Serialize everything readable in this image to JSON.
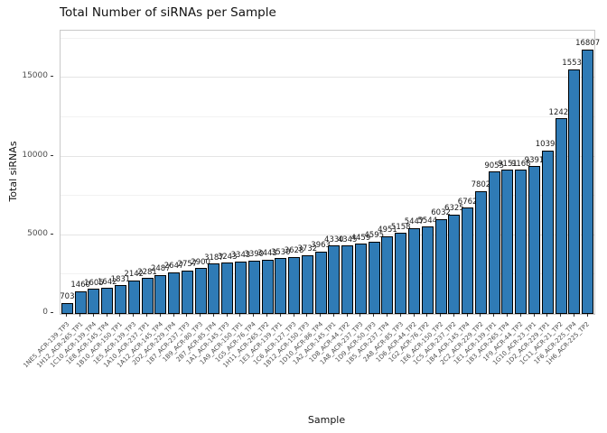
{
  "chart_data": {
    "type": "bar",
    "title": "Total Number of siRNAs per Sample",
    "xlabel": "Sample",
    "ylabel": "Total siRNAs",
    "ylim": [
      0,
      18000
    ],
    "yticks": [
      0,
      5000,
      10000,
      15000
    ],
    "yticks_minor": [
      2500,
      7500,
      12500,
      17500
    ],
    "grid": "on",
    "legend": "none",
    "bar_color": "#2f7bb6",
    "bar_border": "#000000",
    "categories": [
      "1NE5_ACR-139_TP3",
      "1H12_ACR-265_TP1",
      "1C10_ACR-139_TP4",
      "1E8_ACR-145_TP4",
      "1B10_ACR-150_TP1",
      "1E5_ACR-139_TP3",
      "1A10_ACR-237_TP1",
      "1A12_ACR-145_TP4",
      "2D2_ACR-229_TP4",
      "1B7_ACR-237_TP3",
      "1B9_ACR-80_TP3",
      "2B7_ACR-85_TP4",
      "1A1_ACR-145_TP3",
      "1A9_ACR-150_TP1",
      "1G5_ACR-76_TP4",
      "1H11_ACR-265_TP2",
      "1E3_ACR-139_TP1",
      "1C6_ACR-127_TP3",
      "1B12_ACR-150_TP3",
      "1D10_ACR-86_TP4",
      "1A2_ACR-145_TP1",
      "1D8_ACR-44_TP2",
      "1A8_ACR-237_TP3",
      "1D9_ACR-50_TP3",
      "1B5_ACR-237_TP4",
      "2A8_ACR-85_TP3",
      "1D6_ACR-44_TP2",
      "1G2_ACR-76_TP2",
      "1E6_ACR-150_TP2",
      "1C5_ACR-237_TP2",
      "1B4_ACR-145_TP4",
      "2C2_ACR-229_TP2",
      "1E1_ACR-139_TP1",
      "1B3_ACR-265_TP4",
      "1F9_ACR-44_TP2",
      "1G10_ACR-23_TP1",
      "1D2_ACR-229_TP1",
      "1C11_ACR-21_TP2",
      "1F6_ACR-225_TP4",
      "1H6_ACR-225_TP2"
    ],
    "values": [
      703,
      1460,
      1605,
      1642,
      1831,
      2142,
      2281,
      2487,
      2647,
      2757,
      2900,
      3187,
      3243,
      3343,
      3390,
      3443,
      3530,
      3628,
      3732,
      3963,
      4330,
      4345,
      4459,
      4595,
      4951,
      5158,
      5447,
      5544,
      6032,
      6325,
      6762,
      7802,
      9055,
      9151,
      9168,
      9391,
      10394,
      12424,
      15536,
      16807
    ]
  }
}
